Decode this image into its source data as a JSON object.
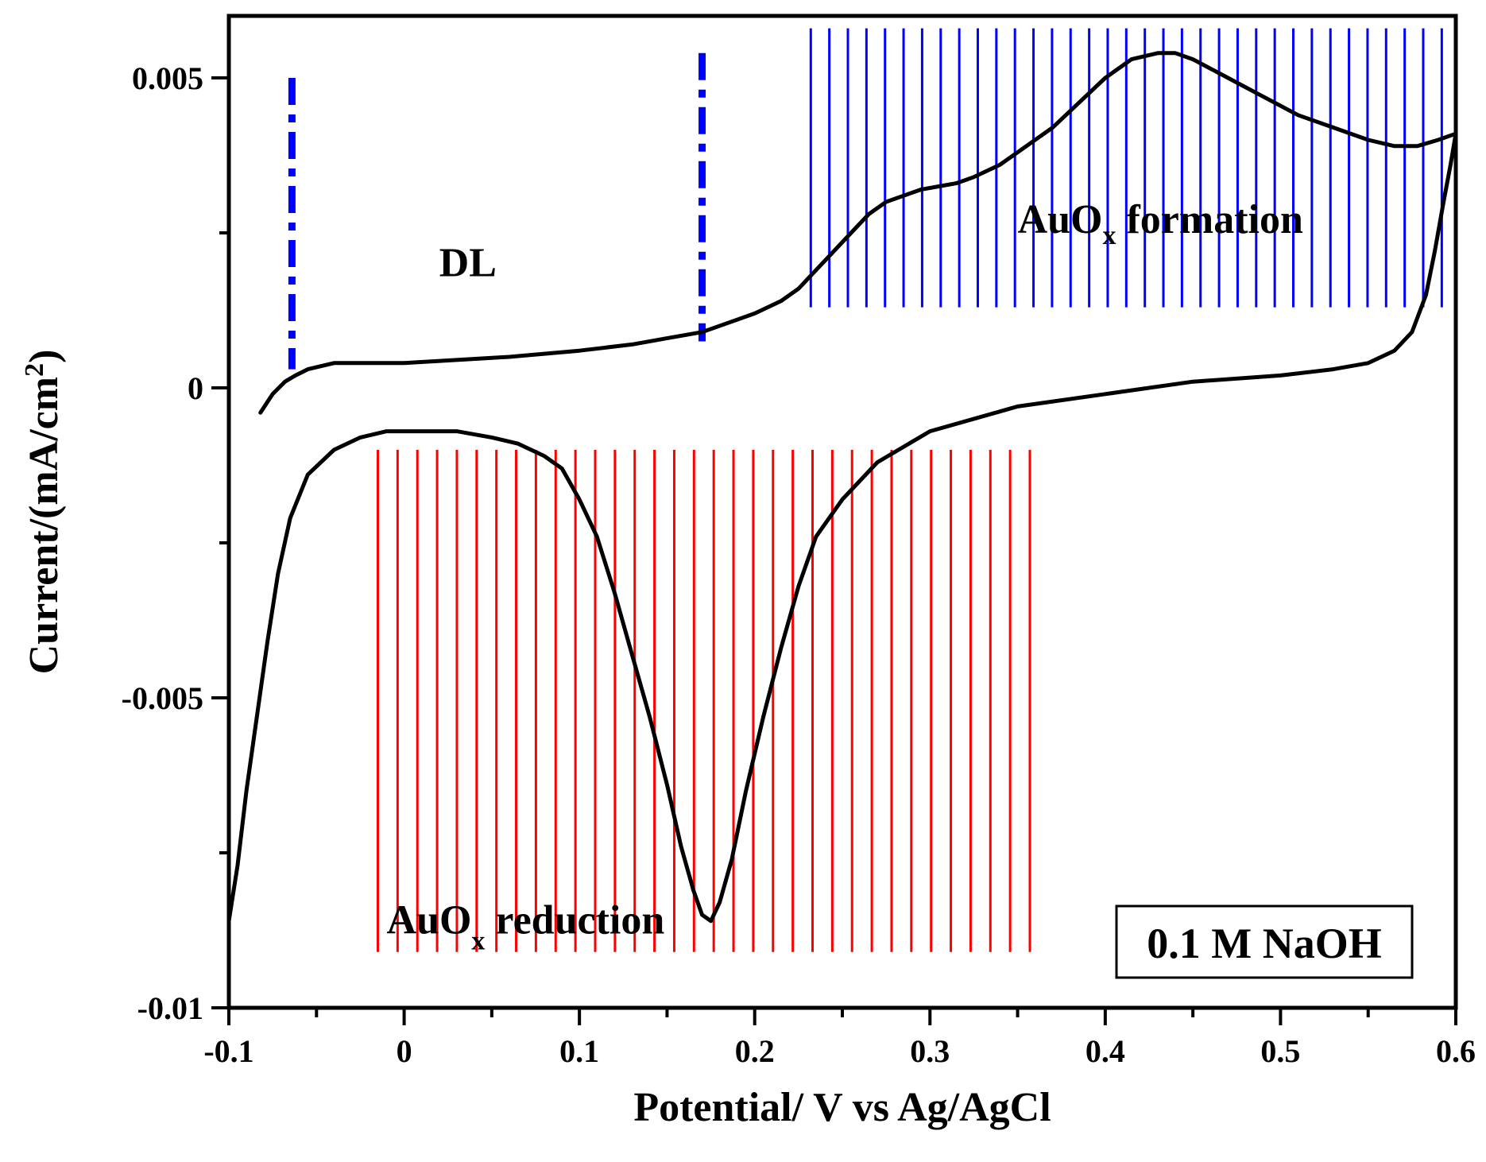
{
  "chart_data": {
    "type": "line",
    "title": "",
    "xlabel": "Potential/ V vs Ag/AgCl",
    "ylabel_main": "Current/(mA/cm",
    "ylabel_sup": "2",
    "ylabel_end": ")",
    "xlim": [
      -0.1,
      0.6
    ],
    "ylim": [
      -0.01,
      0.006
    ],
    "x_ticks": [
      -0.1,
      0,
      0.1,
      0.2,
      0.3,
      0.4,
      0.5,
      0.6
    ],
    "x_tick_labels": [
      "-0.1",
      "0",
      "0.1",
      "0.2",
      "0.3",
      "0.4",
      "0.5",
      "0.6"
    ],
    "y_ticks": [
      -0.01,
      -0.005,
      0,
      0.005
    ],
    "y_tick_labels": [
      "-0.01",
      "-0.005",
      "0",
      "0.005"
    ],
    "grid": false,
    "series": [
      {
        "color": "#000000",
        "segment": "anodic",
        "x": [
          -0.082,
          -0.075,
          -0.068,
          -0.062,
          -0.055,
          -0.04,
          -0.02,
          0.0,
          0.03,
          0.06,
          0.1,
          0.13,
          0.15,
          0.17,
          0.19,
          0.2,
          0.215,
          0.225,
          0.235,
          0.245,
          0.255,
          0.265,
          0.275,
          0.285,
          0.295,
          0.305,
          0.315,
          0.325,
          0.34,
          0.355,
          0.37,
          0.385,
          0.4,
          0.415,
          0.43,
          0.44,
          0.45,
          0.47,
          0.49,
          0.51,
          0.53,
          0.55,
          0.565,
          0.578,
          0.59,
          0.6
        ],
        "y": [
          -0.0004,
          -0.0001,
          0.0001,
          0.0002,
          0.0003,
          0.0004,
          0.0004,
          0.0004,
          0.00045,
          0.0005,
          0.0006,
          0.0007,
          0.0008,
          0.0009,
          0.0011,
          0.0012,
          0.0014,
          0.0016,
          0.0019,
          0.0022,
          0.0025,
          0.0028,
          0.003,
          0.0031,
          0.0032,
          0.00325,
          0.0033,
          0.0034,
          0.0036,
          0.0039,
          0.0042,
          0.0046,
          0.005,
          0.0053,
          0.0054,
          0.0054,
          0.0053,
          0.005,
          0.0047,
          0.0044,
          0.0042,
          0.004,
          0.0039,
          0.0039,
          0.004,
          0.0041
        ]
      },
      {
        "color": "#000000",
        "segment": "cathodic",
        "x": [
          0.6,
          0.597,
          0.593,
          0.588,
          0.583,
          0.575,
          0.565,
          0.55,
          0.53,
          0.5,
          0.45,
          0.4,
          0.35,
          0.3,
          0.27,
          0.25,
          0.235,
          0.225,
          0.215,
          0.205,
          0.195,
          0.187,
          0.18,
          0.175,
          0.17,
          0.165,
          0.158,
          0.15,
          0.14,
          0.13,
          0.12,
          0.11,
          0.1,
          0.09,
          0.08,
          0.065,
          0.05,
          0.03,
          0.01,
          -0.01,
          -0.025,
          -0.04,
          -0.055,
          -0.065,
          -0.072,
          -0.078,
          -0.084,
          -0.09,
          -0.095,
          -0.1
        ],
        "y": [
          0.0041,
          0.0036,
          0.003,
          0.0022,
          0.0015,
          0.0009,
          0.0006,
          0.0004,
          0.0003,
          0.0002,
          0.0001,
          -0.0001,
          -0.0003,
          -0.0007,
          -0.0012,
          -0.0018,
          -0.0024,
          -0.0032,
          -0.0042,
          -0.0053,
          -0.0065,
          -0.0076,
          -0.0083,
          -0.0086,
          -0.0085,
          -0.0081,
          -0.0074,
          -0.0064,
          -0.0053,
          -0.0043,
          -0.0033,
          -0.0024,
          -0.0018,
          -0.0013,
          -0.0011,
          -0.0009,
          -0.0008,
          -0.0007,
          -0.0007,
          -0.0007,
          -0.0008,
          -0.001,
          -0.0014,
          -0.0021,
          -0.003,
          -0.0041,
          -0.0053,
          -0.0065,
          -0.0077,
          -0.0086
        ]
      }
    ],
    "boundaries": {
      "color": "#0000ff",
      "style": "dash-dot",
      "lines": [
        {
          "x": -0.064,
          "y_from": 0.0003,
          "y_to": 0.005
        },
        {
          "x": 0.17,
          "y_from": 0.00075,
          "y_to": 0.0054
        }
      ]
    },
    "hatched_regions": [
      {
        "label_main": "AuO",
        "label_sub": "x",
        "label_end": " formation",
        "color": "#0000ff",
        "x_from": 0.232,
        "x_to": 0.592,
        "y_from": 0.0013,
        "y_to": 0.0058,
        "label_x": 0.35,
        "label_y": 0.0025,
        "line_count": 35
      },
      {
        "label_main": "AuO",
        "label_sub": "x",
        "label_end": " reduction",
        "color": "#ff0000",
        "x_from": -0.015,
        "x_to": 0.357,
        "y_from": -0.0091,
        "y_to": -0.001,
        "label_x": -0.01,
        "label_y": -0.0088,
        "line_count": 34
      }
    ],
    "annotations": [
      {
        "text": "DL",
        "x": 0.02,
        "y": 0.0018
      }
    ],
    "legend": {
      "text": "0.1 M NaOH",
      "placement": "bottom-right"
    }
  }
}
